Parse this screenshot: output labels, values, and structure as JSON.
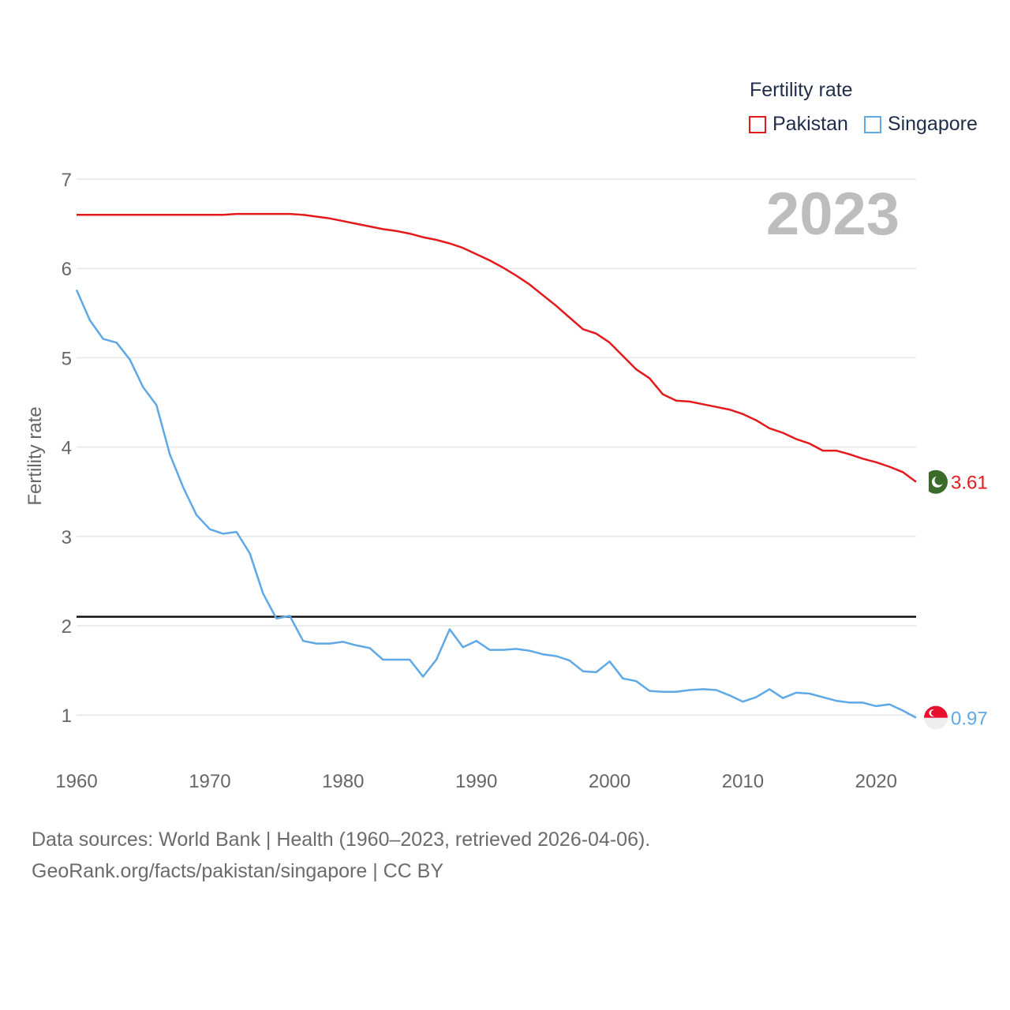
{
  "legend": {
    "title": "Fertility rate",
    "items": [
      {
        "label": "Pakistan",
        "color": "#e31a1c"
      },
      {
        "label": "Singapore",
        "color": "#5fa8e6"
      }
    ]
  },
  "current_year": "2023",
  "source": {
    "line1": "Data sources: World Bank | Health (1960–2023, retrieved 2026-04-06).",
    "line2": "GeoRank.org/facts/pakistan/singapore | CC BY"
  },
  "chart_data": {
    "type": "line",
    "title": "Fertility rate",
    "xlabel": "",
    "ylabel": "Fertility rate",
    "xlim": [
      1960,
      2023
    ],
    "ylim": [
      0.5,
      7
    ],
    "x_ticks": [
      1960,
      1970,
      1980,
      1990,
      2000,
      2010,
      2020
    ],
    "y_ticks": [
      1,
      2,
      3,
      4,
      5,
      6,
      7
    ],
    "reference_line": 2.1,
    "x": [
      1960,
      1961,
      1962,
      1963,
      1964,
      1965,
      1966,
      1967,
      1968,
      1969,
      1970,
      1971,
      1972,
      1973,
      1974,
      1975,
      1976,
      1977,
      1978,
      1979,
      1980,
      1981,
      1982,
      1983,
      1984,
      1985,
      1986,
      1987,
      1988,
      1989,
      1990,
      1991,
      1992,
      1993,
      1994,
      1995,
      1996,
      1997,
      1998,
      1999,
      2000,
      2001,
      2002,
      2003,
      2004,
      2005,
      2006,
      2007,
      2008,
      2009,
      2010,
      2011,
      2012,
      2013,
      2014,
      2015,
      2016,
      2017,
      2018,
      2019,
      2020,
      2021,
      2022,
      2023
    ],
    "series": [
      {
        "name": "Pakistan",
        "color": "#e31a1c",
        "end_label": "3.61",
        "values": [
          6.6,
          6.6,
          6.6,
          6.6,
          6.6,
          6.6,
          6.6,
          6.6,
          6.6,
          6.6,
          6.6,
          6.6,
          6.61,
          6.61,
          6.61,
          6.61,
          6.61,
          6.6,
          6.58,
          6.56,
          6.53,
          6.5,
          6.47,
          6.44,
          6.42,
          6.39,
          6.35,
          6.32,
          6.28,
          6.23,
          6.16,
          6.09,
          6.01,
          5.92,
          5.82,
          5.7,
          5.58,
          5.45,
          5.32,
          5.27,
          5.17,
          5.02,
          4.87,
          4.77,
          4.59,
          4.52,
          4.51,
          4.48,
          4.45,
          4.42,
          4.37,
          4.3,
          4.21,
          4.16,
          4.09,
          4.04,
          3.96,
          3.96,
          3.92,
          3.87,
          3.83,
          3.78,
          3.72,
          3.61
        ]
      },
      {
        "name": "Singapore",
        "color": "#5fa8e6",
        "end_label": "0.97",
        "values": [
          5.76,
          5.42,
          5.21,
          5.17,
          4.98,
          4.67,
          4.47,
          3.92,
          3.55,
          3.24,
          3.08,
          3.03,
          3.05,
          2.81,
          2.36,
          2.08,
          2.11,
          1.83,
          1.8,
          1.8,
          1.82,
          1.78,
          1.75,
          1.62,
          1.62,
          1.62,
          1.43,
          1.62,
          1.96,
          1.76,
          1.83,
          1.73,
          1.73,
          1.74,
          1.72,
          1.68,
          1.66,
          1.61,
          1.49,
          1.48,
          1.6,
          1.41,
          1.38,
          1.27,
          1.26,
          1.26,
          1.28,
          1.29,
          1.28,
          1.22,
          1.15,
          1.2,
          1.29,
          1.19,
          1.25,
          1.24,
          1.2,
          1.16,
          1.14,
          1.14,
          1.1,
          1.12,
          1.05,
          0.97
        ]
      }
    ]
  }
}
